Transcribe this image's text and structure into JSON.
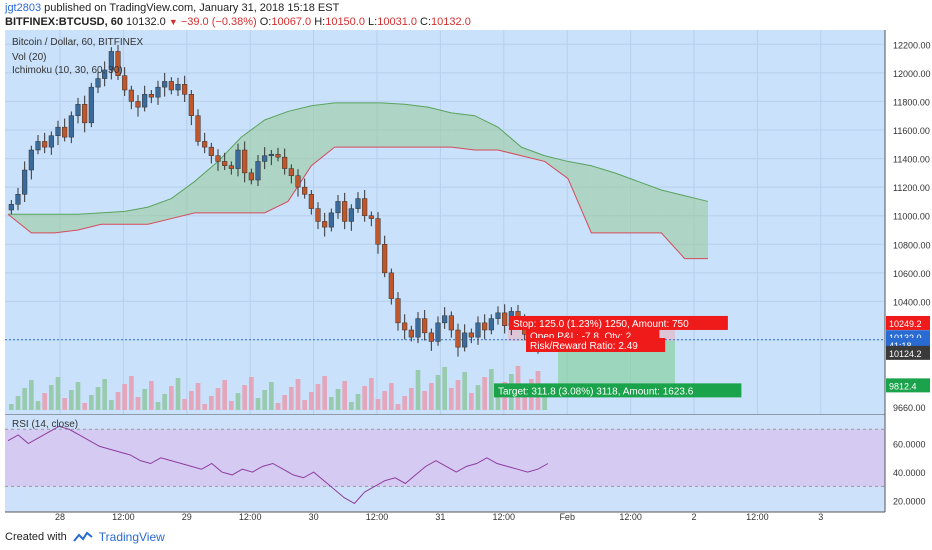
{
  "header": {
    "username": "jgt2803",
    "published_text": "published on TradingView.com, January 31, 2018 15:18 EST",
    "symbol": "BITFINEX:BTCUSD, 60",
    "last": "10132.0",
    "change": "−39.0 (−0.38%)",
    "o_label": "O:",
    "o_value": "10067.0",
    "h_label": "H:",
    "h_value": "10150.0",
    "l_label": "L:",
    "l_value": "10031.0",
    "c_label": "C:",
    "c_value": "10132.0"
  },
  "footer": {
    "created_text": "Created with",
    "brand": "TradingView"
  },
  "chart_data": {
    "type": "candlestick",
    "title": "Bitcoin / Dollar, 60, BITFINEX",
    "indicators": [
      "Vol (20)",
      "Ichimoku (10, 30, 60, 30)"
    ],
    "x_ticks": [
      "28",
      "12:00",
      "29",
      "12:00",
      "30",
      "12:00",
      "31",
      "12:00",
      "Feb",
      "12:00",
      "2",
      "12:00",
      "3"
    ],
    "y_ticks": [
      12200,
      12000,
      11800,
      11600,
      11400,
      11200,
      11000,
      10800,
      10600,
      10400,
      9660
    ],
    "ylim": [
      9640,
      12300
    ],
    "close_path": [
      11080,
      11150,
      11320,
      11460,
      11520,
      11480,
      11560,
      11620,
      11550,
      11700,
      11780,
      11650,
      11900,
      11960,
      12020,
      12150,
      11980,
      11880,
      11800,
      11760,
      11850,
      11830,
      11900,
      11940,
      11880,
      11920,
      11850,
      11700,
      11520,
      11480,
      11420,
      11380,
      11350,
      11330,
      11460,
      11300,
      11250,
      11380,
      11420,
      11430,
      11410,
      11330,
      11280,
      11200,
      11150,
      11050,
      10960,
      10920,
      11020,
      11100,
      10960,
      11050,
      11120,
      11000,
      10980,
      10800,
      10600,
      10420,
      10250,
      10200,
      10150,
      10280,
      10180,
      10120,
      10250,
      10300,
      10200,
      10080,
      10180,
      10150,
      10250,
      10200,
      10280,
      10320,
      10230,
      10330,
      10250,
      10170,
      10120,
      10100,
      10132
    ],
    "ichimoku_span_a": [
      11010,
      11010,
      11010,
      11010,
      11020,
      11030,
      11060,
      11120,
      11240,
      11380,
      11550,
      11670,
      11730,
      11770,
      11790,
      11790,
      11790,
      11780,
      11760,
      11720,
      11700,
      11620,
      11480,
      11420,
      11380,
      11350,
      11300,
      11240,
      11180,
      11140,
      11100
    ],
    "ichimoku_span_b": [
      11010,
      10880,
      10880,
      10900,
      10940,
      10940,
      10940,
      10980,
      11020,
      11020,
      11020,
      11020,
      11100,
      11350,
      11480,
      11480,
      11480,
      11480,
      11480,
      11480,
      11460,
      11460,
      11420,
      11380,
      11260,
      10880,
      10880,
      10880,
      10880,
      10700,
      10700
    ],
    "rsi": {
      "label": "RSI (14, close)",
      "ticks": [
        60.0,
        40.0,
        20.0
      ],
      "values": [
        62,
        66,
        60,
        64,
        68,
        72,
        70,
        66,
        62,
        58,
        56,
        54,
        52,
        48,
        46,
        50,
        48,
        46,
        44,
        42,
        46,
        40,
        38,
        42,
        40,
        44,
        46,
        42,
        38,
        36,
        40,
        34,
        28,
        22,
        18,
        26,
        30,
        34,
        36,
        32,
        38,
        44,
        48,
        44,
        40,
        44,
        46,
        50,
        46,
        44,
        42,
        40,
        42,
        46
      ]
    },
    "price_labels": {
      "target_zone": "10249.2",
      "last_price": "10132.0",
      "countdown": "41:18",
      "entry": "10124.2",
      "target": "9812.4",
      "axis_low": "9660.0"
    },
    "positions": {
      "stop": "Stop: 125.0 (1.23%) 1250, Amount: 750",
      "open_pl": "Open P&L: -7.8, Qty: 2",
      "risk_reward": "Risk/Reward Ratio: 2.49",
      "target": "Target: 311.8 (3.08%) 3118, Amount: 1623.6",
      "stop_price": 10249.2,
      "entry_price": 10124.2,
      "target_price": 9812.4
    }
  },
  "colors": {
    "bg": "#c9e1fa",
    "cloud_green": "#9ccca2",
    "cloud_red": "#e6cbd8",
    "candle_up": "#3b6b9a",
    "candle_down": "#c0562b",
    "vol_up": "#8fc7a0",
    "vol_down": "#e79bae",
    "rsi_band": "#d7c6f0",
    "rsi_line": "#8e3c9e",
    "stop": "#ef1b1b",
    "target": "#1aa34a"
  }
}
